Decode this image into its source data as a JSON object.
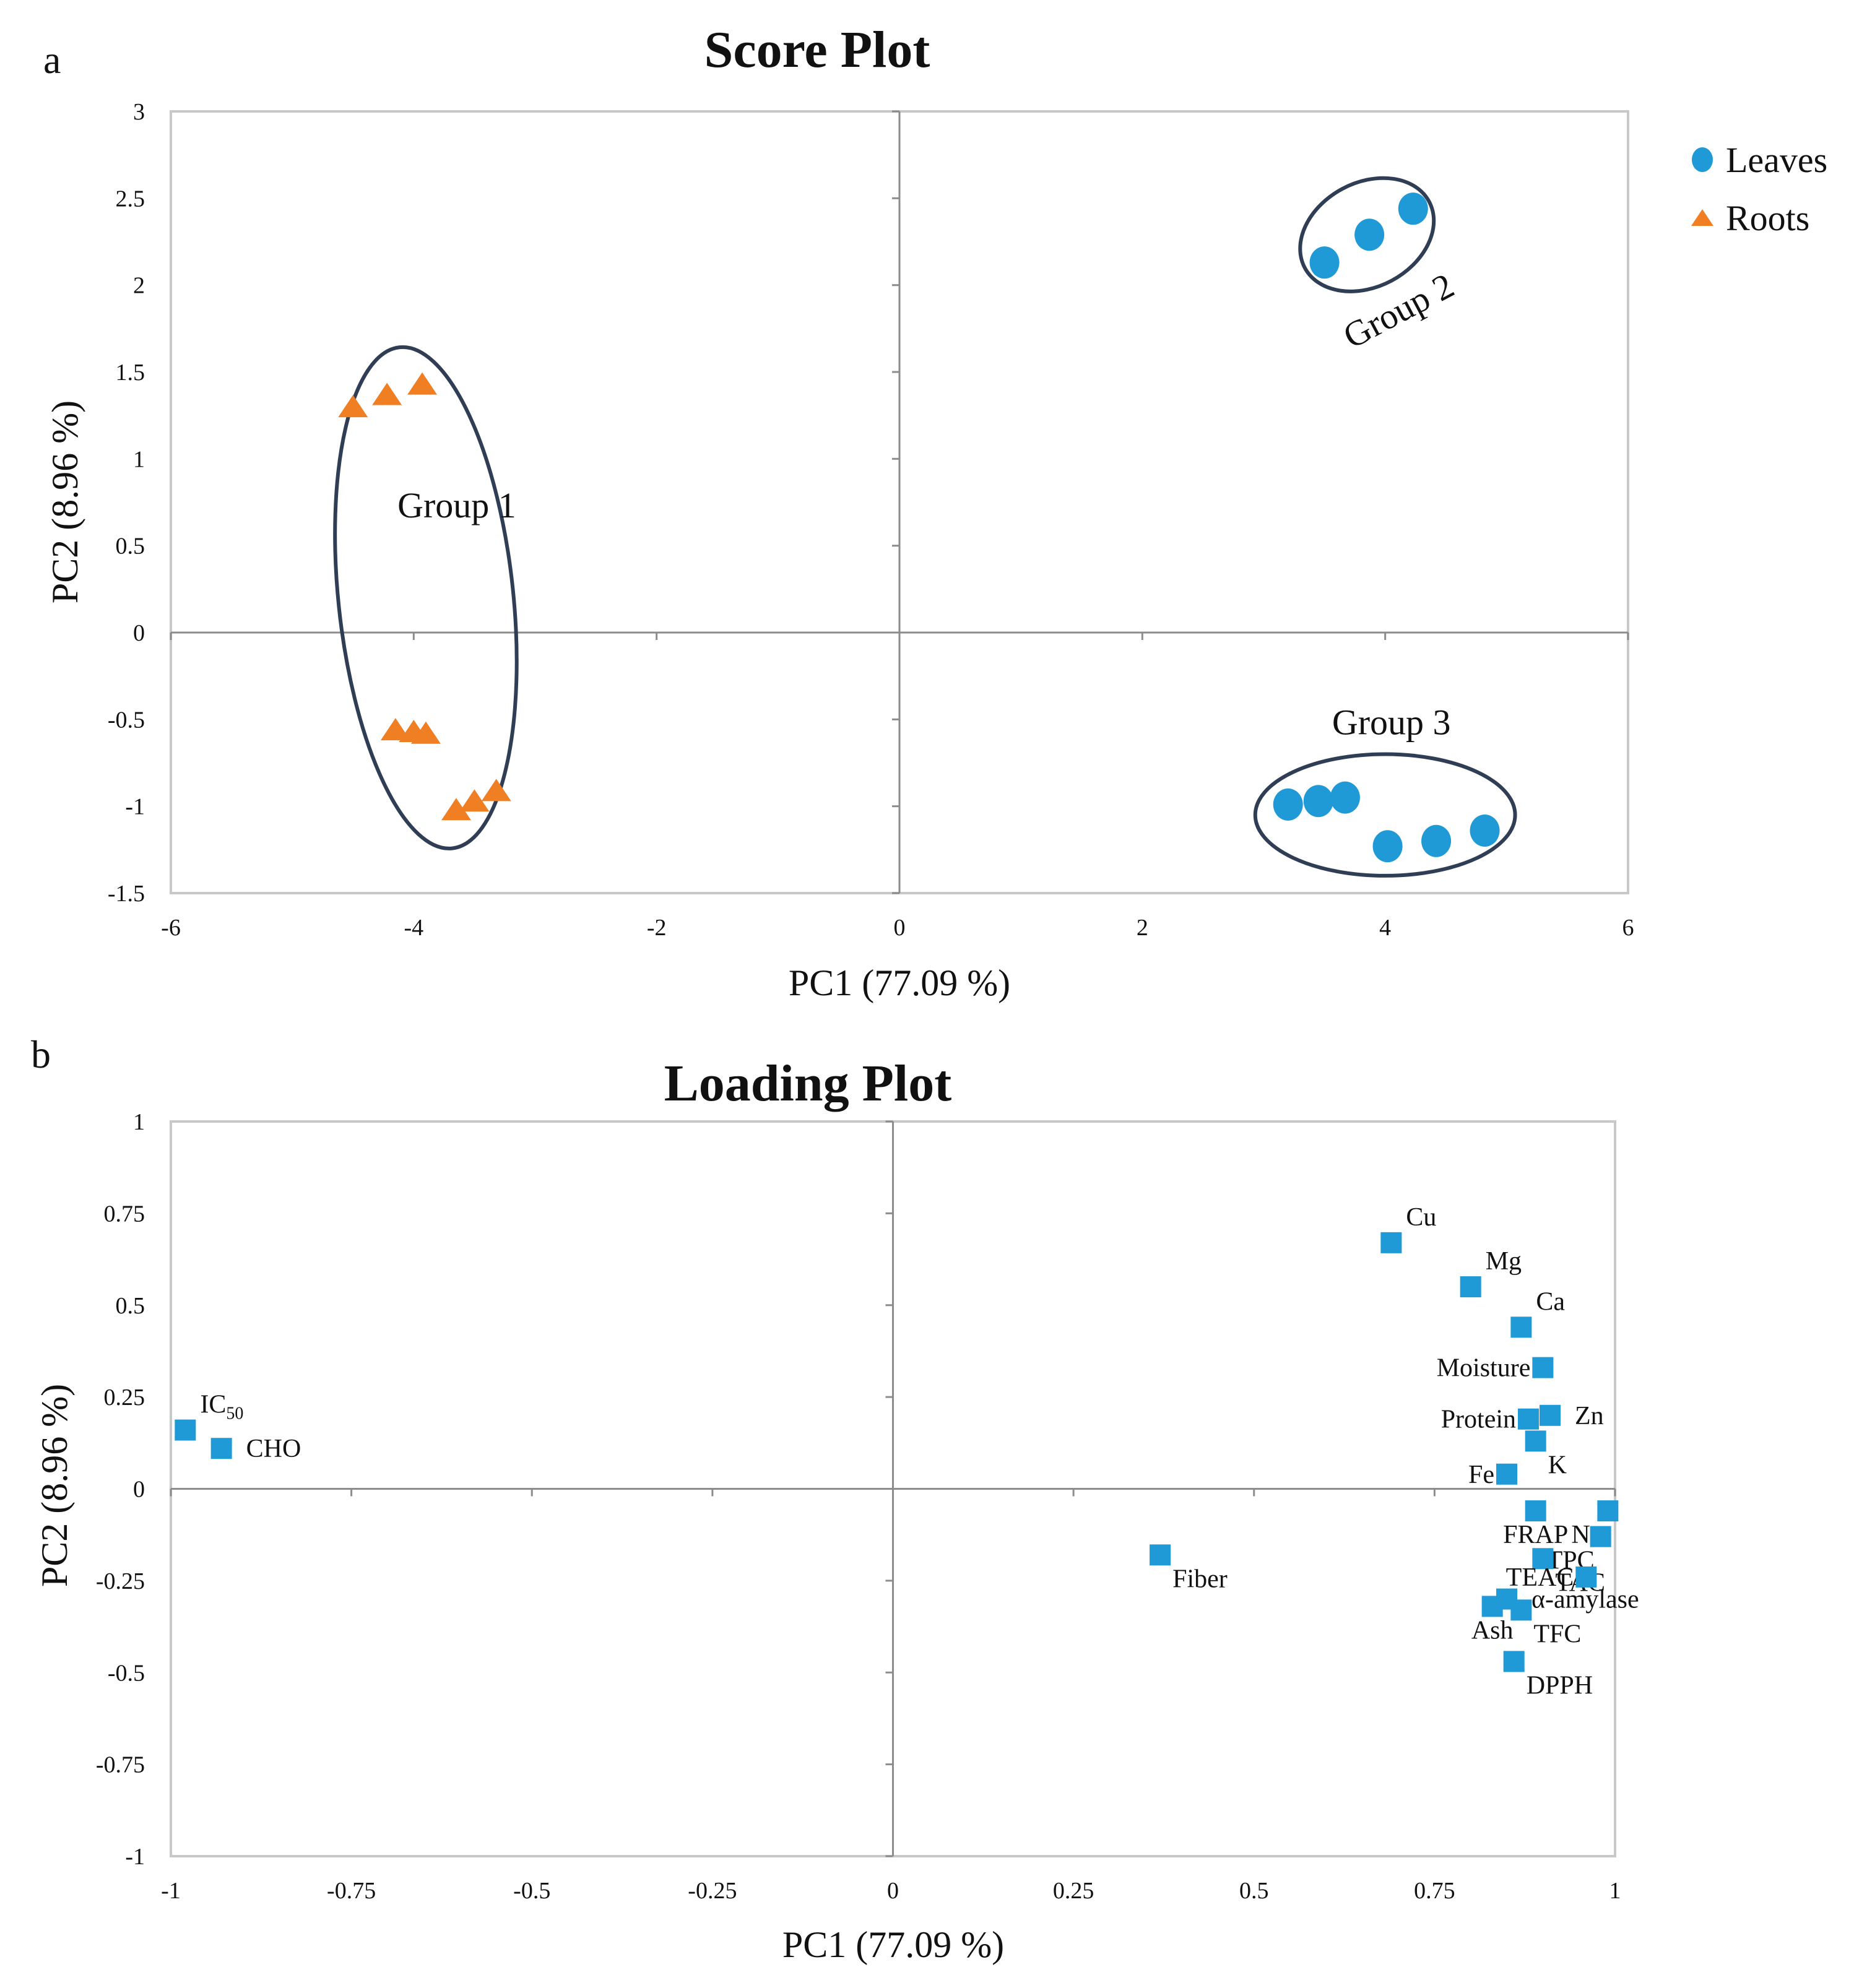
{
  "chart_data": [
    {
      "type": "scatter",
      "panel": "a",
      "title": "Score Plot",
      "xlabel": "PC1 (77.09 %)",
      "ylabel": "PC2 (8.96 %)",
      "xlim": [
        -6,
        6
      ],
      "ylim": [
        -1.5,
        3
      ],
      "xticks": [
        "-6",
        "-4",
        "-2",
        "0",
        "2",
        "4",
        "6"
      ],
      "yticks": [
        "-1.5",
        "-1",
        "-0.5",
        "0",
        "0.5",
        "1",
        "1.5",
        "2",
        "2.5",
        "3"
      ],
      "grid": false,
      "legend_position": "right",
      "series": [
        {
          "name": "Leaves",
          "marker": "circle",
          "color": "#1f9ad6",
          "points": [
            {
              "x": 3.5,
              "y": 2.13
            },
            {
              "x": 3.87,
              "y": 2.29
            },
            {
              "x": 4.23,
              "y": 2.44
            },
            {
              "x": 3.2,
              "y": -0.99
            },
            {
              "x": 3.45,
              "y": -0.97
            },
            {
              "x": 3.67,
              "y": -0.95
            },
            {
              "x": 4.02,
              "y": -1.23
            },
            {
              "x": 4.42,
              "y": -1.2
            },
            {
              "x": 4.82,
              "y": -1.14
            }
          ]
        },
        {
          "name": "Roots",
          "marker": "triangle",
          "color": "#f07f23",
          "points": [
            {
              "x": -4.5,
              "y": 1.3
            },
            {
              "x": -4.22,
              "y": 1.37
            },
            {
              "x": -3.93,
              "y": 1.43
            },
            {
              "x": -4.15,
              "y": -0.56
            },
            {
              "x": -4.0,
              "y": -0.57
            },
            {
              "x": -3.9,
              "y": -0.58
            },
            {
              "x": -3.65,
              "y": -1.02
            },
            {
              "x": -3.5,
              "y": -0.97
            },
            {
              "x": -3.32,
              "y": -0.91
            }
          ]
        }
      ],
      "groups": [
        {
          "label": "Group 1",
          "cx": -3.9,
          "cy": 0.2,
          "rx": 0.72,
          "ry": 1.45,
          "rot_deg": -6
        },
        {
          "label": "Group 2",
          "cx": 3.85,
          "cy": 2.29,
          "rx": 0.58,
          "ry": 0.3,
          "rot_deg": -28
        },
        {
          "label": "Group 3",
          "cx": 4.0,
          "cy": -1.05,
          "rx": 1.07,
          "ry": 0.35,
          "rot_deg": 0
        }
      ]
    },
    {
      "type": "scatter",
      "panel": "b",
      "title": "Loading Plot",
      "xlabel": "PC1 (77.09 %)",
      "ylabel": "PC2 (8.96 %)",
      "xlim": [
        -1,
        1
      ],
      "ylim": [
        -1,
        1
      ],
      "xticks": [
        "-1",
        "-0.75",
        "-0.5",
        "-0.25",
        "0",
        "0.25",
        "0.5",
        "0.75",
        "1"
      ],
      "yticks": [
        "-1",
        "-0.75",
        "-0.5",
        "-0.25",
        "0",
        "0.25",
        "0.5",
        "0.75",
        "1"
      ],
      "grid": false,
      "marker": "square",
      "color": "#1f9ad6",
      "points": [
        {
          "label": "IC50",
          "x": -0.98,
          "y": 0.16,
          "label_side": "above-right"
        },
        {
          "label": "CHO",
          "x": -0.93,
          "y": 0.11,
          "label_side": "right"
        },
        {
          "label": "Fiber",
          "x": 0.37,
          "y": -0.18,
          "label_side": "below-right"
        },
        {
          "label": "Cu",
          "x": 0.69,
          "y": 0.67,
          "label_side": "above-right"
        },
        {
          "label": "Mg",
          "x": 0.8,
          "y": 0.55,
          "label_side": "above-right"
        },
        {
          "label": "Ca",
          "x": 0.87,
          "y": 0.44,
          "label_side": "above-right"
        },
        {
          "label": "Moisture",
          "x": 0.9,
          "y": 0.33,
          "label_side": "left"
        },
        {
          "label": "Protein",
          "x": 0.88,
          "y": 0.19,
          "label_side": "left"
        },
        {
          "label": "Zn",
          "x": 0.91,
          "y": 0.2,
          "label_side": "right"
        },
        {
          "label": "K",
          "x": 0.89,
          "y": 0.13,
          "label_side": "below-right"
        },
        {
          "label": "Fe",
          "x": 0.85,
          "y": 0.04,
          "label_side": "left"
        },
        {
          "label": "FRAP",
          "x": 0.89,
          "y": -0.06,
          "label_side": "below"
        },
        {
          "label": "Na",
          "x": 0.99,
          "y": -0.06,
          "label_side": "below-left"
        },
        {
          "label": "TPC",
          "x": 0.98,
          "y": -0.13,
          "label_side": "below-left"
        },
        {
          "label": "TAC",
          "x": 0.9,
          "y": -0.19,
          "label_side": "below-right"
        },
        {
          "label": "TEAC",
          "x": 0.96,
          "y": -0.24,
          "label_side": "left"
        },
        {
          "label": "α-amylase",
          "x": 0.85,
          "y": -0.3,
          "label_side": "right"
        },
        {
          "label": "Ash",
          "x": 0.83,
          "y": -0.32,
          "label_side": "below"
        },
        {
          "label": "TFC",
          "x": 0.87,
          "y": -0.33,
          "label_side": "below-right"
        },
        {
          "label": "DPPH",
          "x": 0.86,
          "y": -0.47,
          "label_side": "below-right"
        }
      ]
    }
  ]
}
